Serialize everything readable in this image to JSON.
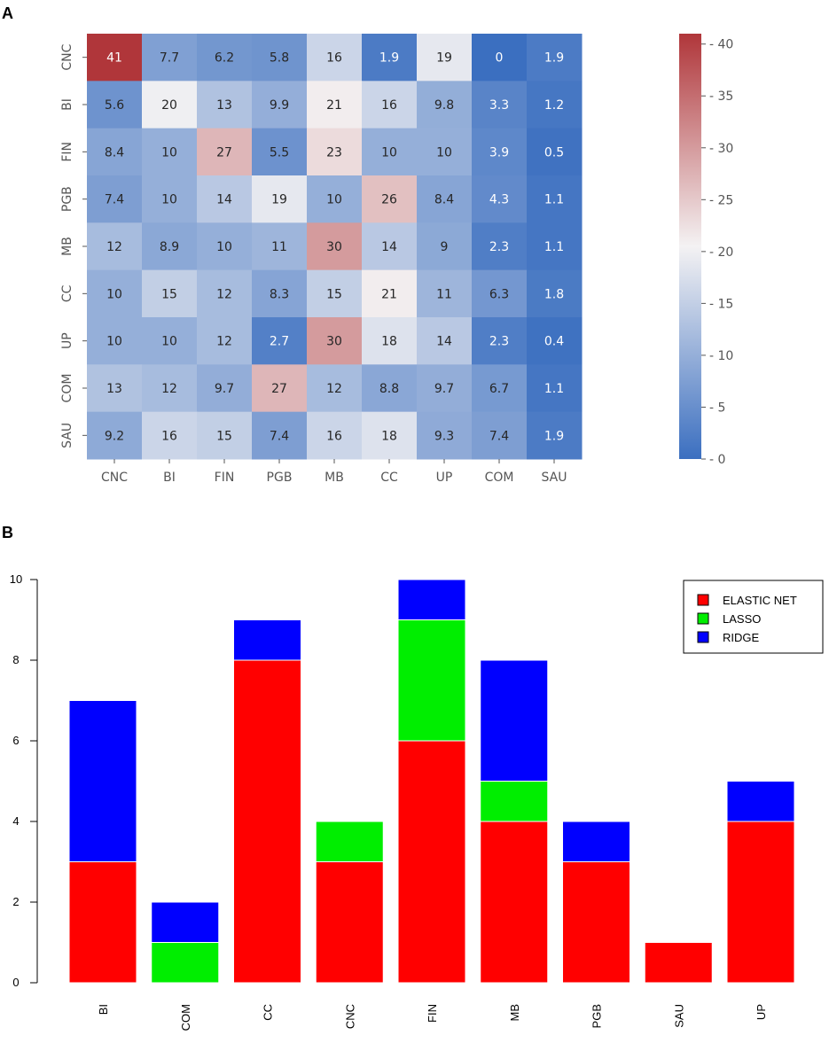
{
  "panels": {
    "a_label": "A",
    "b_label": "B"
  },
  "chart_data": [
    {
      "type": "heatmap",
      "panel": "A",
      "rows": [
        "CNC",
        "BI",
        "FIN",
        "PGB",
        "MB",
        "CC",
        "UP",
        "COM",
        "SAU"
      ],
      "cols": [
        "CNC",
        "BI",
        "FIN",
        "PGB",
        "MB",
        "CC",
        "UP",
        "COM",
        "SAU"
      ],
      "values": [
        [
          "41",
          "7.7",
          "6.2",
          "5.8",
          "16",
          "1.9",
          "19",
          "0",
          "1.9"
        ],
        [
          "5.6",
          "20",
          "13",
          "9.9",
          "21",
          "16",
          "9.8",
          "3.3",
          "1.2"
        ],
        [
          "8.4",
          "10",
          "27",
          "5.5",
          "23",
          "10",
          "10",
          "3.9",
          "0.5"
        ],
        [
          "7.4",
          "10",
          "14",
          "19",
          "10",
          "26",
          "8.4",
          "4.3",
          "1.1"
        ],
        [
          "12",
          "8.9",
          "10",
          "11",
          "30",
          "14",
          "9",
          "2.3",
          "1.1"
        ],
        [
          "10",
          "15",
          "12",
          "8.3",
          "15",
          "21",
          "11",
          "6.3",
          "1.8"
        ],
        [
          "10",
          "10",
          "12",
          "2.7",
          "30",
          "18",
          "14",
          "2.3",
          "0.4"
        ],
        [
          "13",
          "12",
          "9.7",
          "27",
          "12",
          "8.8",
          "9.7",
          "6.7",
          "1.1"
        ],
        [
          "9.2",
          "16",
          "15",
          "7.4",
          "16",
          "18",
          "9.3",
          "7.4",
          "1.9"
        ]
      ],
      "colorbar": {
        "min": 0,
        "max": 41,
        "ticks": [
          "0",
          "5",
          "10",
          "15",
          "20",
          "25",
          "30",
          "35",
          "40"
        ]
      },
      "colormap": {
        "low": "#3b6fc0",
        "mid": "#f4f2f3",
        "high": "#b0363a",
        "mid_value": 20.5
      }
    },
    {
      "type": "bar",
      "panel": "B",
      "stacked": true,
      "categories": [
        "BI",
        "COM",
        "CC",
        "CNC",
        "FIN",
        "MB",
        "PGB",
        "SAU",
        "UP"
      ],
      "series": [
        {
          "name": "ELASTIC NET",
          "color": "#ff0000",
          "values": [
            3,
            0,
            8,
            3,
            6,
            4,
            3,
            1,
            4
          ]
        },
        {
          "name": "LASSO",
          "color": "#00ee00",
          "values": [
            0,
            1,
            0,
            1,
            3,
            1,
            0,
            0,
            0
          ]
        },
        {
          "name": "RIDGE",
          "color": "#0000ff",
          "values": [
            4,
            1,
            1,
            0,
            1,
            3,
            1,
            0,
            1
          ]
        }
      ],
      "ylim": [
        0,
        10
      ],
      "yticks": [
        "0",
        "2",
        "4",
        "6",
        "8",
        "10"
      ],
      "legend_position": "top-right"
    }
  ]
}
